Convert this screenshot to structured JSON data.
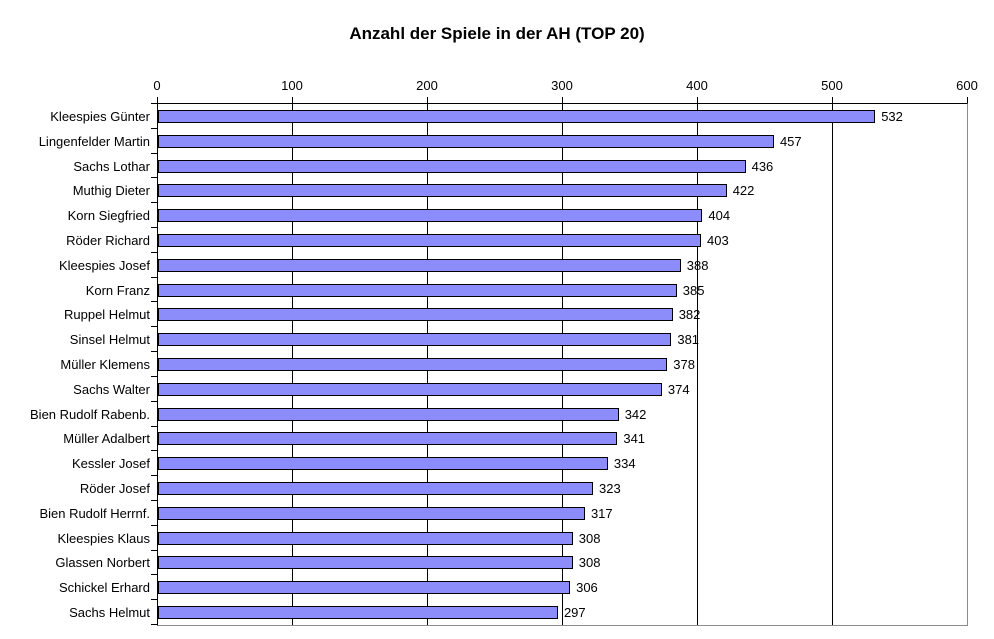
{
  "chart_data": {
    "type": "bar",
    "orientation": "horizontal",
    "title": "Anzahl der Spiele in der AH (TOP 20)",
    "xlabel": "",
    "ylabel": "",
    "xlim": [
      0,
      600
    ],
    "x_ticks": [
      0,
      100,
      200,
      300,
      400,
      500,
      600
    ],
    "grid": "vertical-major",
    "legend": "none",
    "value_labels_shown": true,
    "categories": [
      "Kleespies Günter",
      "Lingenfelder Martin",
      "Sachs Lothar",
      "Muthig Dieter",
      "Korn Siegfried",
      "Röder Richard",
      "Kleespies Josef",
      "Korn Franz",
      "Ruppel Helmut",
      "Sinsel Helmut",
      "Müller Klemens",
      "Sachs Walter",
      "Bien Rudolf Rabenb.",
      "Müller Adalbert",
      "Kessler Josef",
      "Röder Josef",
      "Bien Rudolf Herrnf.",
      "Kleespies Klaus",
      "Glassen Norbert",
      "Schickel Erhard",
      "Sachs Helmut"
    ],
    "values": [
      532,
      457,
      436,
      422,
      404,
      403,
      388,
      385,
      382,
      381,
      378,
      374,
      342,
      341,
      334,
      323,
      317,
      308,
      308,
      306,
      297
    ],
    "colors": {
      "bar_fill": "#8c8cfa",
      "bar_border": "#000000",
      "gridline": "#000000",
      "axis_line": "#000000",
      "plot_border_right_bottom": "#8c8c8c",
      "background": "#ffffff",
      "text": "#000000"
    }
  }
}
